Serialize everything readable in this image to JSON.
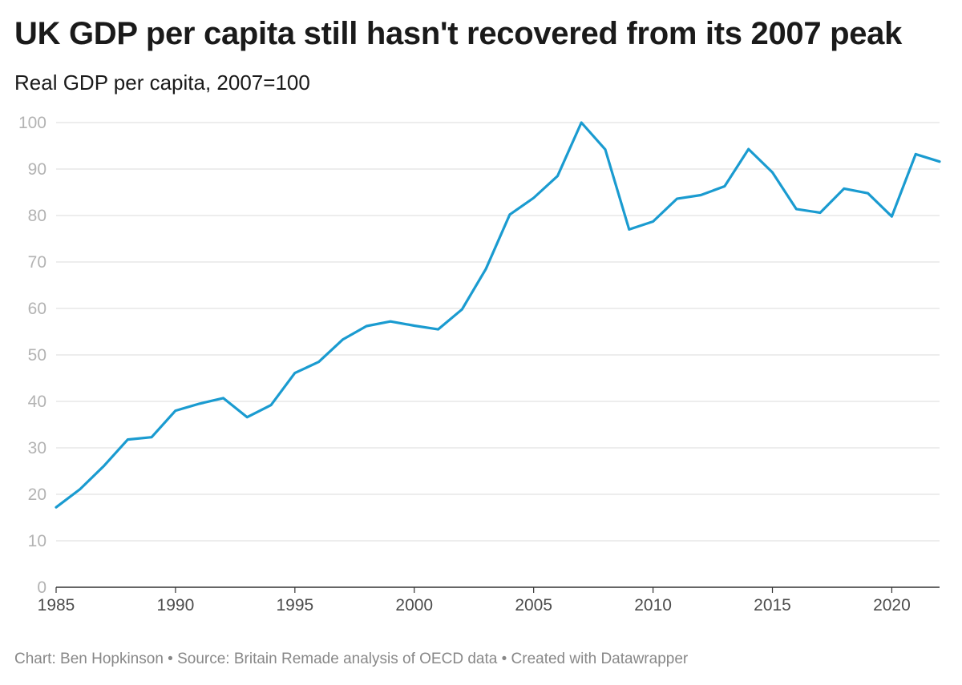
{
  "title": "UK GDP per capita still hasn't recovered from its 2007 peak",
  "subtitle": "Real GDP per capita, 2007=100",
  "footer": {
    "chart_credit": "Chart: Ben Hopkinson",
    "separator": " • ",
    "source": "Source: Britain Remade analysis of OECD data",
    "created_with": "Created with Datawrapper"
  },
  "colors": {
    "line": "#1a9bd0",
    "grid": "#e2e2e2",
    "ytick": "#b3b3b3",
    "xtick": "#4d4d4d"
  },
  "chart_data": {
    "type": "line",
    "title": "UK GDP per capita still hasn't recovered from its 2007 peak",
    "subtitle": "Real GDP per capita, 2007=100",
    "xlabel": "",
    "ylabel": "",
    "xlim": [
      1985,
      2022
    ],
    "ylim": [
      0,
      100
    ],
    "yticks": [
      0,
      10,
      20,
      30,
      40,
      50,
      60,
      70,
      80,
      90,
      100
    ],
    "xticks": [
      1985,
      1990,
      1995,
      2000,
      2005,
      2010,
      2015,
      2020
    ],
    "grid": true,
    "series": [
      {
        "name": "Real GDP per capita",
        "x": [
          1985,
          1986,
          1987,
          1988,
          1989,
          1990,
          1991,
          1992,
          1993,
          1994,
          1995,
          1996,
          1997,
          1998,
          1999,
          2000,
          2001,
          2002,
          2003,
          2004,
          2005,
          2006,
          2007,
          2008,
          2009,
          2010,
          2011,
          2012,
          2013,
          2014,
          2015,
          2016,
          2017,
          2018,
          2019,
          2020,
          2021,
          2022
        ],
        "values": [
          17.2,
          21.1,
          26.1,
          31.8,
          32.3,
          38.0,
          39.5,
          40.7,
          36.6,
          39.2,
          46.1,
          48.5,
          53.3,
          56.2,
          57.2,
          56.3,
          55.5,
          59.8,
          68.5,
          80.2,
          83.8,
          88.5,
          100.0,
          94.2,
          77.0,
          78.7,
          83.6,
          84.4,
          86.3,
          94.3,
          89.3,
          81.4,
          80.6,
          85.8,
          84.8,
          79.8,
          93.2,
          91.6
        ]
      }
    ]
  }
}
